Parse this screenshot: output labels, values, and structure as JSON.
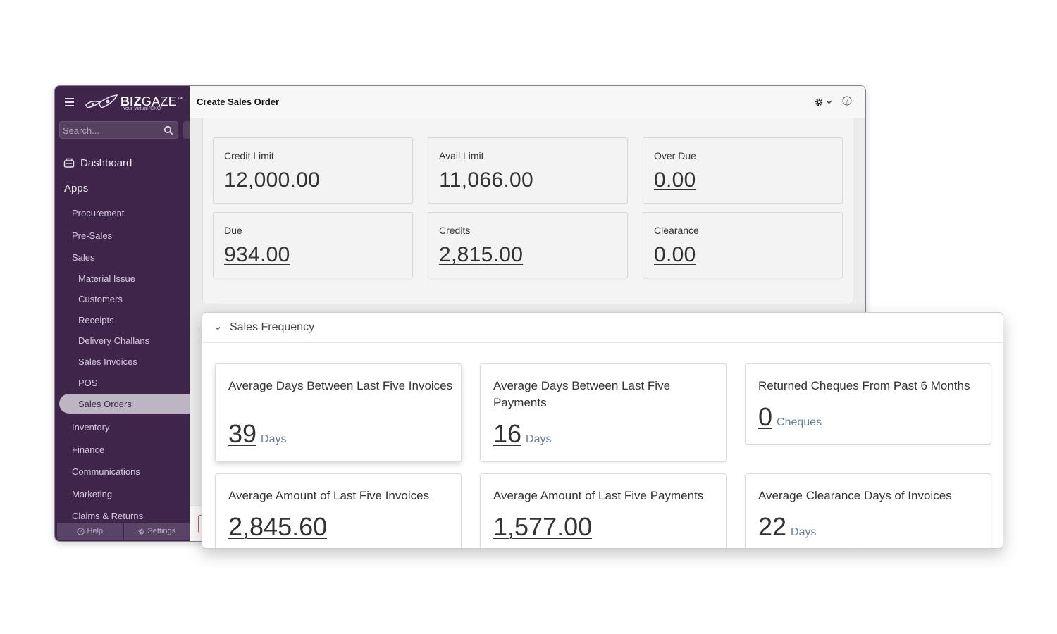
{
  "sidebar": {
    "logo": {
      "brand_bold": "BIZ",
      "brand_light": "GAZE",
      "tm": "™",
      "tagline": "Your Virtual 'CXO'"
    },
    "search": {
      "placeholder": "Search..."
    },
    "dashboard_label": "Dashboard",
    "apps_label": "Apps",
    "items": [
      {
        "label": "Procurement"
      },
      {
        "label": "Pre-Sales"
      },
      {
        "label": "Sales"
      },
      {
        "label": "Material Issue"
      },
      {
        "label": "Customers"
      },
      {
        "label": "Receipts"
      },
      {
        "label": "Delivery Challans"
      },
      {
        "label": "Sales Invoices"
      },
      {
        "label": "POS"
      },
      {
        "label": "Sales Orders"
      },
      {
        "label": "Inventory"
      },
      {
        "label": "Finance"
      },
      {
        "label": "Communications"
      },
      {
        "label": "Marketing"
      },
      {
        "label": "Claims & Returns"
      }
    ],
    "footer": {
      "help_label": "Help",
      "settings_label": "Settings"
    }
  },
  "page": {
    "title": "Create Sales Order",
    "icons": {
      "settings": "gear-icon",
      "help": "question-icon"
    }
  },
  "summary": {
    "credit_limit": {
      "label": "Credit Limit",
      "value": "12,000.00"
    },
    "avail_limit": {
      "label": "Avail Limit",
      "value": "11,066.00"
    },
    "over_due": {
      "label": "Over Due",
      "value": "0.00"
    },
    "due": {
      "label": "Due",
      "value": "934.00"
    },
    "credits": {
      "label": "Credits",
      "value": "2,815.00"
    },
    "clearance": {
      "label": "Clearance",
      "value": "0.00"
    }
  },
  "sales_frequency": {
    "title": "Sales Frequency",
    "cards": {
      "avg_days_invoices": {
        "title": "Average Days Between Last Five Invoices",
        "value": "39",
        "unit": "Days"
      },
      "avg_days_payments": {
        "title": "Average Days Between Last Five Payments",
        "value": "16",
        "unit": "Days"
      },
      "returned_cheques": {
        "title": "Returned Cheques From Past 6 Months",
        "value": "0",
        "unit": "Cheques"
      },
      "avg_amount_invoices": {
        "title": "Average Amount of Last Five Invoices",
        "value": "2,845.60"
      },
      "avg_amount_payments": {
        "title": "Average Amount of Last Five Payments",
        "value": "1,577.00"
      },
      "avg_clearance_days": {
        "title": "Average Clearance Days of Invoices",
        "value": "22",
        "unit": "Days"
      }
    }
  },
  "colors": {
    "sidebar_bg": "#3f2549",
    "active_item_bg": "#bdb4c4",
    "unit_text": "#6b7f96"
  }
}
